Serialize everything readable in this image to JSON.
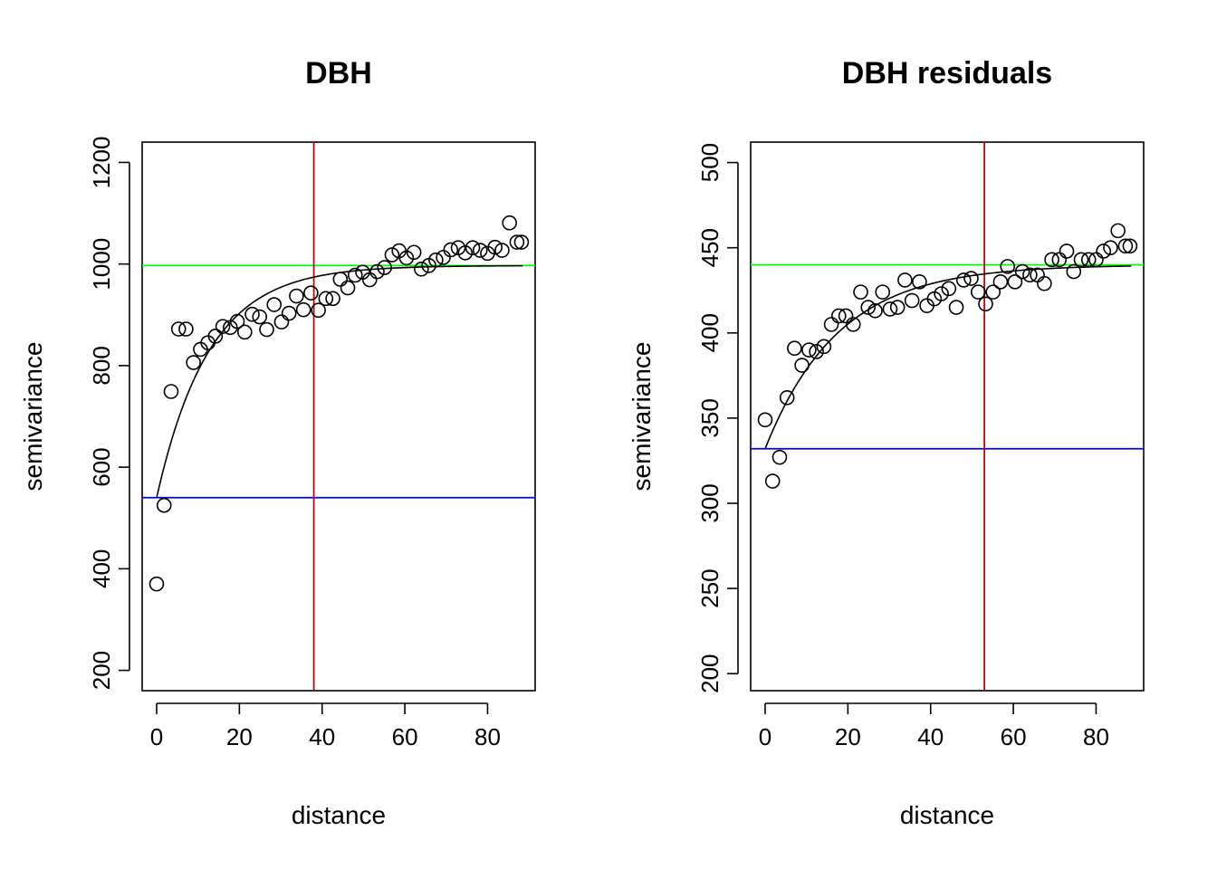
{
  "chart_data": [
    {
      "type": "scatter",
      "title": "DBH",
      "xlabel": "distance",
      "ylabel": "semivariance",
      "xlim": [
        -3.5,
        91.5
      ],
      "ylim": [
        160,
        1240
      ],
      "xticks": [
        0,
        20,
        40,
        60,
        80
      ],
      "yticks": [
        200,
        400,
        600,
        800,
        1000,
        1200
      ],
      "points": {
        "x": [
          0,
          1.8,
          3.5,
          5.3,
          7.1,
          8.9,
          10.6,
          12.4,
          14.2,
          16.0,
          17.8,
          19.5,
          21.3,
          23.1,
          24.9,
          26.6,
          28.4,
          30.2,
          32.0,
          33.8,
          35.5,
          37.3,
          39.1,
          40.9,
          42.6,
          44.4,
          46.2,
          48.0,
          49.8,
          51.5,
          53.3,
          55.1,
          56.9,
          58.6,
          60.4,
          62.2,
          64.0,
          65.8,
          67.5,
          69.3,
          71.1,
          72.9,
          74.6,
          76.4,
          78.2,
          80.0,
          81.8,
          83.5,
          85.3,
          87.1,
          88.2
        ],
        "y": [
          370,
          525,
          749,
          872,
          872,
          806,
          832,
          845,
          858,
          877,
          875,
          887,
          866,
          901,
          896,
          871,
          920,
          886,
          903,
          937,
          910,
          943,
          909,
          932,
          932,
          970,
          953,
          978,
          984,
          969,
          985,
          993,
          1018,
          1026,
          1012,
          1023,
          990,
          997,
          1008,
          1013,
          1028,
          1032,
          1022,
          1032,
          1027,
          1021,
          1033,
          1027,
          1081,
          1043,
          1043
        ]
      },
      "model": {
        "nugget": 540,
        "sill": 997,
        "range": 38
      },
      "nugget_line": {
        "y": 540,
        "color": "#0000ff"
      },
      "sill_line": {
        "y": 997,
        "color": "#00ff00"
      },
      "range_line": {
        "x": 38,
        "color": "#cc0000"
      }
    },
    {
      "type": "scatter",
      "title": "DBH residuals",
      "xlabel": "distance",
      "ylabel": "semivariance",
      "xlim": [
        -3.5,
        91.5
      ],
      "ylim": [
        190,
        512
      ],
      "xticks": [
        0,
        20,
        40,
        60,
        80
      ],
      "yticks": [
        200,
        250,
        300,
        350,
        400,
        450,
        500
      ],
      "points": {
        "x": [
          0,
          1.8,
          3.5,
          5.3,
          7.1,
          8.9,
          10.6,
          12.4,
          14.2,
          16.0,
          17.8,
          19.5,
          21.3,
          23.1,
          24.9,
          26.6,
          28.4,
          30.2,
          32.0,
          33.8,
          35.5,
          37.3,
          39.1,
          40.9,
          42.6,
          44.4,
          46.2,
          48.0,
          49.8,
          51.5,
          53.3,
          55.1,
          56.9,
          58.6,
          60.4,
          62.2,
          64.0,
          65.8,
          67.5,
          69.3,
          71.1,
          72.9,
          74.6,
          76.4,
          78.2,
          80.0,
          81.8,
          83.5,
          85.3,
          87.1,
          88.2
        ],
        "y": [
          349,
          313,
          327,
          362,
          391,
          381,
          390,
          389,
          392,
          405,
          410,
          410,
          405,
          424,
          415,
          413,
          424,
          414,
          415,
          431,
          419,
          430,
          416,
          420,
          423,
          426,
          415,
          431,
          432,
          424,
          417,
          424,
          430,
          439,
          430,
          436,
          434,
          434,
          429,
          443,
          443,
          448,
          436,
          443,
          443,
          443,
          448,
          450,
          460,
          451,
          451
        ]
      },
      "model": {
        "nugget": 332,
        "sill": 440,
        "range": 53
      },
      "nugget_line": {
        "y": 332,
        "color": "#0000ff"
      },
      "sill_line": {
        "y": 440,
        "color": "#00ff00"
      },
      "range_line": {
        "x": 53,
        "color": "#cc0000"
      }
    }
  ]
}
